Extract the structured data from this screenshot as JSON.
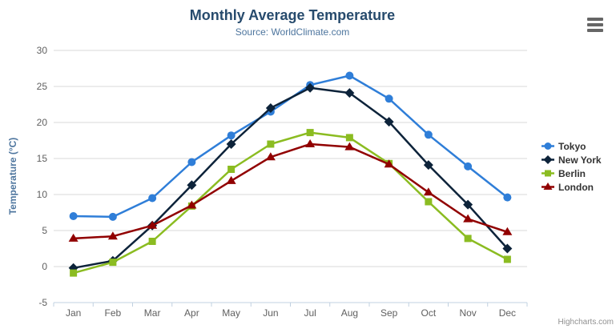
{
  "header": {
    "title": "Monthly Average Temperature",
    "subtitle": "Source: WorldClimate.com"
  },
  "credits": {
    "label": "Highcharts.com"
  },
  "menu": {
    "icon": "hamburger-icon"
  },
  "chart_data": {
    "type": "line",
    "title": "Monthly Average Temperature",
    "subtitle": "Source: WorldClimate.com",
    "xlabel": "",
    "ylabel": "Temperature (°C)",
    "ylim": [
      -5,
      30
    ],
    "ytick_step": 5,
    "grid": true,
    "legend_position": "right",
    "categories": [
      "Jan",
      "Feb",
      "Mar",
      "Apr",
      "May",
      "Jun",
      "Jul",
      "Aug",
      "Sep",
      "Oct",
      "Nov",
      "Dec"
    ],
    "series": [
      {
        "name": "Tokyo",
        "color": "#2f7ed8",
        "marker": "circle",
        "values": [
          7.0,
          6.9,
          9.5,
          14.5,
          18.2,
          21.5,
          25.2,
          26.5,
          23.3,
          18.3,
          13.9,
          9.6
        ]
      },
      {
        "name": "New York",
        "color": "#0d233a",
        "marker": "diamond",
        "values": [
          -0.2,
          0.8,
          5.7,
          11.3,
          17.0,
          22.0,
          24.8,
          24.1,
          20.1,
          14.1,
          8.6,
          2.5
        ]
      },
      {
        "name": "Berlin",
        "color": "#8bbc21",
        "marker": "square",
        "values": [
          -0.9,
          0.6,
          3.5,
          8.4,
          13.5,
          17.0,
          18.6,
          17.9,
          14.3,
          9.0,
          3.9,
          1.0
        ]
      },
      {
        "name": "London",
        "color": "#910000",
        "marker": "triangle",
        "values": [
          3.9,
          4.2,
          5.7,
          8.5,
          11.9,
          15.2,
          17.0,
          16.6,
          14.2,
          10.3,
          6.6,
          4.8
        ]
      }
    ],
    "style": {
      "grid_color": "#d8d8d8",
      "axis_line_color": "#c0d0e0",
      "axis_label_color": "#606060",
      "title_color": "#274b6d",
      "subtitle_color": "#4d759e",
      "legend_text_color": "#333333"
    }
  }
}
